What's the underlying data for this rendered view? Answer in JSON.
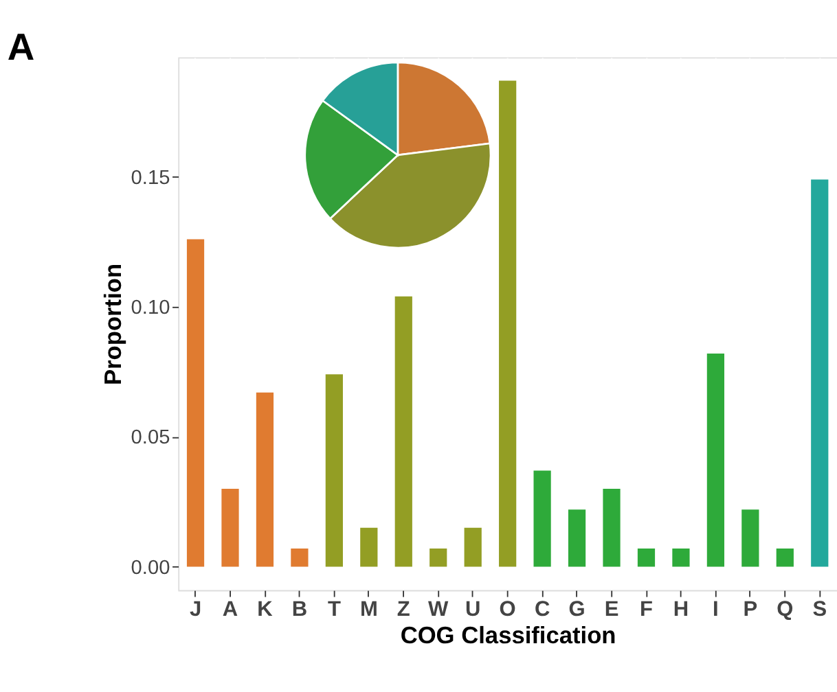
{
  "chart_data": [
    {
      "type": "bar",
      "xlabel": "COG Classification",
      "ylabel": "Proportion",
      "annotations": [
        "A"
      ],
      "categories": [
        "J",
        "A",
        "K",
        "B",
        "T",
        "M",
        "Z",
        "W",
        "U",
        "O",
        "C",
        "G",
        "E",
        "F",
        "H",
        "I",
        "P",
        "Q",
        "S"
      ],
      "values": [
        0.126,
        0.03,
        0.067,
        0.007,
        0.074,
        0.015,
        0.104,
        0.007,
        0.015,
        0.187,
        0.037,
        0.022,
        0.03,
        0.007,
        0.007,
        0.082,
        0.022,
        0.007,
        0.149
      ],
      "colors": [
        "#e07b30",
        "#e07b30",
        "#e07b30",
        "#e07b30",
        "#939e24",
        "#939e24",
        "#939e24",
        "#939e24",
        "#939e24",
        "#939e24",
        "#2eaa3a",
        "#2eaa3a",
        "#2eaa3a",
        "#2eaa3a",
        "#2eaa3a",
        "#2eaa3a",
        "#2eaa3a",
        "#2eaa3a",
        "#23a89c"
      ],
      "ylim": [
        -0.009,
        0.196
      ],
      "yticks": [
        {
          "value": 0,
          "label": "0.00"
        },
        0.05,
        {
          "value": 0.1,
          "label": "0.10"
        },
        0.15
      ],
      "grid": true
    },
    {
      "type": "pie",
      "categories": [
        null,
        null,
        null,
        null
      ],
      "values": [
        23,
        40,
        22,
        15
      ],
      "colors": [
        "#cd7733",
        "#8b912c",
        "#33a03a",
        "#27a097"
      ]
    }
  ]
}
